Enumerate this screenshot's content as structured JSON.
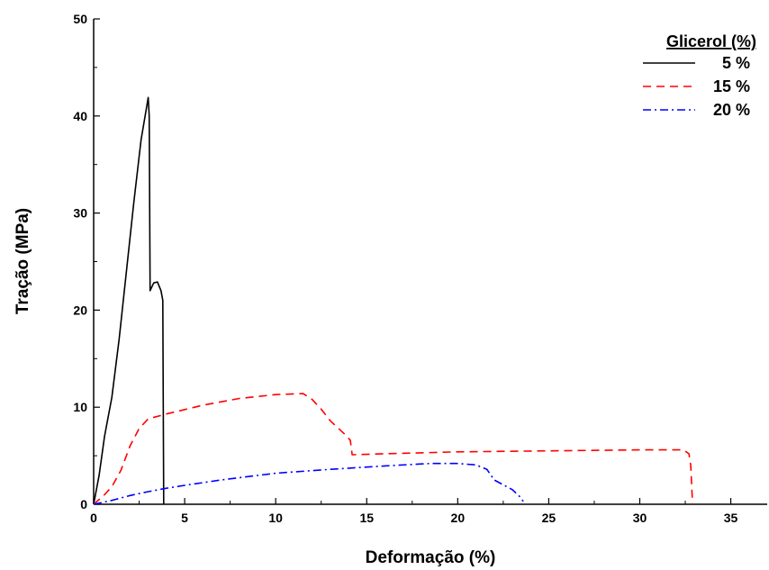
{
  "chart_data": {
    "type": "line",
    "xlabel": "Deformação (%)",
    "ylabel": "Tração (MPa)",
    "xlim": [
      0,
      37
    ],
    "ylim": [
      0,
      50
    ],
    "x_ticks": [
      0,
      5,
      10,
      15,
      20,
      25,
      30,
      35
    ],
    "y_ticks": [
      0,
      10,
      20,
      30,
      40,
      50
    ],
    "grid": false,
    "legend": {
      "title": "Glicerol (%)",
      "placement": "top-right"
    },
    "series": [
      {
        "name": "5 %",
        "color": "#000000",
        "style": "solid",
        "points": [
          [
            0,
            0
          ],
          [
            0.3,
            3
          ],
          [
            0.6,
            7
          ],
          [
            1.0,
            11
          ],
          [
            1.4,
            17
          ],
          [
            1.8,
            24
          ],
          [
            2.2,
            31
          ],
          [
            2.6,
            37.5
          ],
          [
            2.9,
            40.8
          ],
          [
            3.0,
            41.9
          ],
          [
            3.05,
            40
          ],
          [
            3.1,
            22
          ],
          [
            3.3,
            22.8
          ],
          [
            3.5,
            22.9
          ],
          [
            3.7,
            22
          ],
          [
            3.8,
            21
          ],
          [
            3.85,
            0
          ]
        ]
      },
      {
        "name": "15 %",
        "color": "#ff0000",
        "style": "dashed",
        "points": [
          [
            0,
            0
          ],
          [
            0.5,
            0.8
          ],
          [
            1,
            1.8
          ],
          [
            1.5,
            3.5
          ],
          [
            2,
            6
          ],
          [
            2.5,
            7.8
          ],
          [
            3,
            8.8
          ],
          [
            4,
            9.3
          ],
          [
            6,
            10.2
          ],
          [
            8,
            10.9
          ],
          [
            10,
            11.3
          ],
          [
            11.5,
            11.4
          ],
          [
            12,
            10.8
          ],
          [
            12.5,
            9.8
          ],
          [
            13,
            8.6
          ],
          [
            13.8,
            7.2
          ],
          [
            14.1,
            6.6
          ],
          [
            14.2,
            5.1
          ],
          [
            16,
            5.2
          ],
          [
            20,
            5.4
          ],
          [
            25,
            5.5
          ],
          [
            30,
            5.6
          ],
          [
            32.4,
            5.6
          ],
          [
            32.7,
            5.2
          ],
          [
            32.8,
            4
          ],
          [
            32.9,
            0
          ]
        ]
      },
      {
        "name": "20 %",
        "color": "#0000ff",
        "style": "dashdot",
        "points": [
          [
            0,
            0
          ],
          [
            1,
            0.4
          ],
          [
            2,
            0.9
          ],
          [
            3,
            1.3
          ],
          [
            4,
            1.65
          ],
          [
            5,
            1.95
          ],
          [
            7,
            2.5
          ],
          [
            10,
            3.2
          ],
          [
            13,
            3.6
          ],
          [
            16,
            3.95
          ],
          [
            18.5,
            4.2
          ],
          [
            20,
            4.2
          ],
          [
            21,
            4.05
          ],
          [
            21.6,
            3.6
          ],
          [
            22,
            2.5
          ],
          [
            23,
            1.5
          ],
          [
            23.4,
            0.8
          ],
          [
            23.6,
            0.3
          ]
        ]
      }
    ]
  }
}
